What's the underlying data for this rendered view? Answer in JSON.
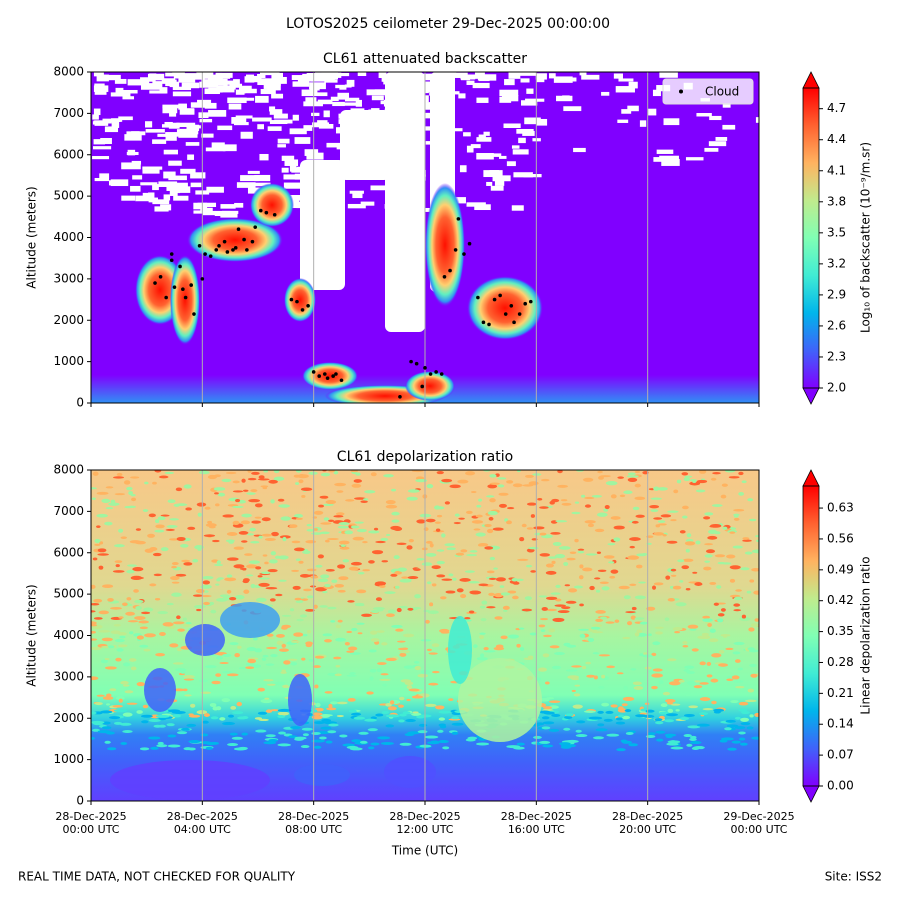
{
  "suptitle": "LOTOS2025 ceilometer 29-Dec-2025 00:00:00",
  "footer": {
    "left": "REAL TIME DATA, NOT CHECKED FOR QUALITY",
    "right": "Site: ISS2"
  },
  "chart_data": [
    {
      "type": "heatmap",
      "title": "CL61 attenuated backscatter",
      "y_label": "Altitude (meters)",
      "ylim": [
        0,
        8000
      ],
      "yticks": [
        0,
        1000,
        2000,
        3000,
        4000,
        5000,
        6000,
        7000,
        8000
      ],
      "colorbar": {
        "label": "Log₁₀ of backscatter (10⁻⁹/m.sr)",
        "cmap": "rainbow",
        "lim": [
          2.0,
          4.9
        ],
        "ticks": [
          {
            "value": 2,
            "label": "2.0"
          },
          2.3,
          2.6,
          2.9,
          3.2,
          3.5,
          3.8,
          4.1,
          4.4,
          4.7
        ]
      },
      "legend": "upper right",
      "series": [
        {
          "name": "Cloud",
          "type": "scatter",
          "color": "#000000",
          "x": [
            "2025-12-28T02:18",
            "2025-12-28T02:30",
            "2025-12-28T02:42",
            "2025-12-28T02:54",
            "2025-12-28T02:54",
            "2025-12-28T03:00",
            "2025-12-28T03:12",
            "2025-12-28T03:18",
            "2025-12-28T03:24",
            "2025-12-28T03:36",
            "2025-12-28T03:42",
            "2025-12-28T03:54",
            "2025-12-28T04:00",
            "2025-12-28T04:06",
            "2025-12-28T04:18",
            "2025-12-28T04:30",
            "2025-12-28T04:36",
            "2025-12-28T04:48",
            "2025-12-28T04:54",
            "2025-12-28T05:06",
            "2025-12-28T05:12",
            "2025-12-28T05:18",
            "2025-12-28T05:30",
            "2025-12-28T05:36",
            "2025-12-28T05:48",
            "2025-12-28T05:54",
            "2025-12-28T06:06",
            "2025-12-28T06:18",
            "2025-12-28T06:36",
            "2025-12-28T07:12",
            "2025-12-28T07:24",
            "2025-12-28T07:36",
            "2025-12-28T07:48",
            "2025-12-28T08:00",
            "2025-12-28T08:12",
            "2025-12-28T08:24",
            "2025-12-28T08:30",
            "2025-12-28T08:42",
            "2025-12-28T08:48",
            "2025-12-28T09:00",
            "2025-12-28T11:06",
            "2025-12-28T11:30",
            "2025-12-28T11:42",
            "2025-12-28T11:54",
            "2025-12-28T12:00",
            "2025-12-28T12:12",
            "2025-12-28T12:24",
            "2025-12-28T12:36",
            "2025-12-28T12:42",
            "2025-12-28T12:54",
            "2025-12-28T13:06",
            "2025-12-28T13:12",
            "2025-12-28T13:24",
            "2025-12-28T13:36",
            "2025-12-28T13:54",
            "2025-12-28T14:06",
            "2025-12-28T14:18",
            "2025-12-28T14:30",
            "2025-12-28T14:42",
            "2025-12-28T14:54",
            "2025-12-28T15:06",
            "2025-12-28T15:12",
            "2025-12-28T15:24",
            "2025-12-28T15:36",
            "2025-12-28T15:48"
          ],
          "y": [
            2900,
            3050,
            2550,
            3600,
            3450,
            2800,
            3300,
            2750,
            2550,
            2850,
            2150,
            3800,
            3000,
            3600,
            3550,
            3700,
            3800,
            3900,
            3650,
            3700,
            3750,
            4200,
            3950,
            3700,
            3900,
            4250,
            4650,
            4600,
            4550,
            2500,
            2450,
            2250,
            2350,
            750,
            650,
            700,
            600,
            650,
            700,
            550,
            150,
            1000,
            950,
            400,
            850,
            700,
            750,
            700,
            3050,
            3200,
            3700,
            4450,
            3600,
            3850,
            2550,
            1950,
            1900,
            2500,
            2600,
            2150,
            2350,
            1950,
            2150,
            2400,
            2450
          ]
        }
      ]
    },
    {
      "type": "heatmap",
      "title": "CL61 depolarization ratio",
      "y_label": "Altitude (meters)",
      "x_label": "Time (UTC)",
      "ylim": [
        0,
        8000
      ],
      "yticks": [
        0,
        1000,
        2000,
        3000,
        4000,
        5000,
        6000,
        7000,
        8000
      ],
      "xlim": [
        "2025-12-28T00:00",
        "2025-12-29T00:00"
      ],
      "xticks": [
        {
          "value": "2025-12-28T00:00",
          "label": "28-Dec-2025\n00:00 UTC"
        },
        {
          "value": "2025-12-28T04:00",
          "label": "28-Dec-2025\n04:00 UTC"
        },
        {
          "value": "2025-12-28T08:00",
          "label": "28-Dec-2025\n08:00 UTC"
        },
        {
          "value": "2025-12-28T12:00",
          "label": "28-Dec-2025\n12:00 UTC"
        },
        {
          "value": "2025-12-28T16:00",
          "label": "28-Dec-2025\n16:00 UTC"
        },
        {
          "value": "2025-12-28T20:00",
          "label": "28-Dec-2025\n20:00 UTC"
        },
        {
          "value": "2025-12-29T00:00",
          "label": "29-Dec-2025\n00:00 UTC"
        }
      ],
      "grid": true,
      "colorbar": {
        "label": "Linear depolarization ratio",
        "cmap": "rainbow",
        "lim": [
          0,
          0.68
        ],
        "ticks": [
          {
            "value": 0,
            "label": "0.00"
          },
          0.07,
          0.14,
          0.21,
          0.28,
          0.35,
          0.42,
          0.49,
          0.56,
          0.63
        ]
      }
    }
  ]
}
